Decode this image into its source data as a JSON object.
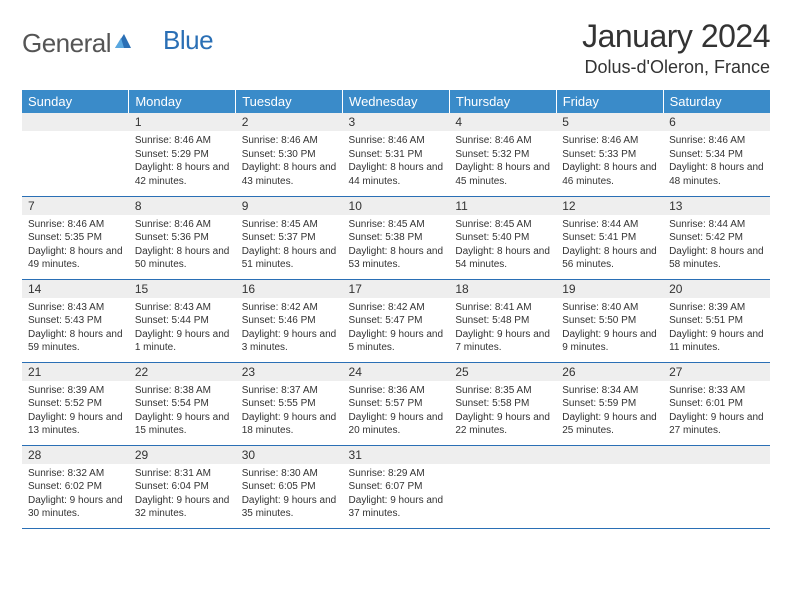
{
  "logo": {
    "text1": "General",
    "text2": "Blue"
  },
  "title": "January 2024",
  "location": "Dolus-d'Oleron, France",
  "colors": {
    "header_bg": "#3a8bc9",
    "header_text": "#ffffff",
    "daynum_bg": "#eeeeee",
    "border": "#2a6fb5",
    "body_text": "#333333"
  },
  "fonts": {
    "title_size": 32,
    "location_size": 18,
    "header_size": 13,
    "daynum_size": 12,
    "body_size": 10
  },
  "weekdays": [
    "Sunday",
    "Monday",
    "Tuesday",
    "Wednesday",
    "Thursday",
    "Friday",
    "Saturday"
  ],
  "weeks": [
    [
      {
        "day": "",
        "sunrise": "",
        "sunset": "",
        "daylight": ""
      },
      {
        "day": "1",
        "sunrise": "Sunrise: 8:46 AM",
        "sunset": "Sunset: 5:29 PM",
        "daylight": "Daylight: 8 hours and 42 minutes."
      },
      {
        "day": "2",
        "sunrise": "Sunrise: 8:46 AM",
        "sunset": "Sunset: 5:30 PM",
        "daylight": "Daylight: 8 hours and 43 minutes."
      },
      {
        "day": "3",
        "sunrise": "Sunrise: 8:46 AM",
        "sunset": "Sunset: 5:31 PM",
        "daylight": "Daylight: 8 hours and 44 minutes."
      },
      {
        "day": "4",
        "sunrise": "Sunrise: 8:46 AM",
        "sunset": "Sunset: 5:32 PM",
        "daylight": "Daylight: 8 hours and 45 minutes."
      },
      {
        "day": "5",
        "sunrise": "Sunrise: 8:46 AM",
        "sunset": "Sunset: 5:33 PM",
        "daylight": "Daylight: 8 hours and 46 minutes."
      },
      {
        "day": "6",
        "sunrise": "Sunrise: 8:46 AM",
        "sunset": "Sunset: 5:34 PM",
        "daylight": "Daylight: 8 hours and 48 minutes."
      }
    ],
    [
      {
        "day": "7",
        "sunrise": "Sunrise: 8:46 AM",
        "sunset": "Sunset: 5:35 PM",
        "daylight": "Daylight: 8 hours and 49 minutes."
      },
      {
        "day": "8",
        "sunrise": "Sunrise: 8:46 AM",
        "sunset": "Sunset: 5:36 PM",
        "daylight": "Daylight: 8 hours and 50 minutes."
      },
      {
        "day": "9",
        "sunrise": "Sunrise: 8:45 AM",
        "sunset": "Sunset: 5:37 PM",
        "daylight": "Daylight: 8 hours and 51 minutes."
      },
      {
        "day": "10",
        "sunrise": "Sunrise: 8:45 AM",
        "sunset": "Sunset: 5:38 PM",
        "daylight": "Daylight: 8 hours and 53 minutes."
      },
      {
        "day": "11",
        "sunrise": "Sunrise: 8:45 AM",
        "sunset": "Sunset: 5:40 PM",
        "daylight": "Daylight: 8 hours and 54 minutes."
      },
      {
        "day": "12",
        "sunrise": "Sunrise: 8:44 AM",
        "sunset": "Sunset: 5:41 PM",
        "daylight": "Daylight: 8 hours and 56 minutes."
      },
      {
        "day": "13",
        "sunrise": "Sunrise: 8:44 AM",
        "sunset": "Sunset: 5:42 PM",
        "daylight": "Daylight: 8 hours and 58 minutes."
      }
    ],
    [
      {
        "day": "14",
        "sunrise": "Sunrise: 8:43 AM",
        "sunset": "Sunset: 5:43 PM",
        "daylight": "Daylight: 8 hours and 59 minutes."
      },
      {
        "day": "15",
        "sunrise": "Sunrise: 8:43 AM",
        "sunset": "Sunset: 5:44 PM",
        "daylight": "Daylight: 9 hours and 1 minute."
      },
      {
        "day": "16",
        "sunrise": "Sunrise: 8:42 AM",
        "sunset": "Sunset: 5:46 PM",
        "daylight": "Daylight: 9 hours and 3 minutes."
      },
      {
        "day": "17",
        "sunrise": "Sunrise: 8:42 AM",
        "sunset": "Sunset: 5:47 PM",
        "daylight": "Daylight: 9 hours and 5 minutes."
      },
      {
        "day": "18",
        "sunrise": "Sunrise: 8:41 AM",
        "sunset": "Sunset: 5:48 PM",
        "daylight": "Daylight: 9 hours and 7 minutes."
      },
      {
        "day": "19",
        "sunrise": "Sunrise: 8:40 AM",
        "sunset": "Sunset: 5:50 PM",
        "daylight": "Daylight: 9 hours and 9 minutes."
      },
      {
        "day": "20",
        "sunrise": "Sunrise: 8:39 AM",
        "sunset": "Sunset: 5:51 PM",
        "daylight": "Daylight: 9 hours and 11 minutes."
      }
    ],
    [
      {
        "day": "21",
        "sunrise": "Sunrise: 8:39 AM",
        "sunset": "Sunset: 5:52 PM",
        "daylight": "Daylight: 9 hours and 13 minutes."
      },
      {
        "day": "22",
        "sunrise": "Sunrise: 8:38 AM",
        "sunset": "Sunset: 5:54 PM",
        "daylight": "Daylight: 9 hours and 15 minutes."
      },
      {
        "day": "23",
        "sunrise": "Sunrise: 8:37 AM",
        "sunset": "Sunset: 5:55 PM",
        "daylight": "Daylight: 9 hours and 18 minutes."
      },
      {
        "day": "24",
        "sunrise": "Sunrise: 8:36 AM",
        "sunset": "Sunset: 5:57 PM",
        "daylight": "Daylight: 9 hours and 20 minutes."
      },
      {
        "day": "25",
        "sunrise": "Sunrise: 8:35 AM",
        "sunset": "Sunset: 5:58 PM",
        "daylight": "Daylight: 9 hours and 22 minutes."
      },
      {
        "day": "26",
        "sunrise": "Sunrise: 8:34 AM",
        "sunset": "Sunset: 5:59 PM",
        "daylight": "Daylight: 9 hours and 25 minutes."
      },
      {
        "day": "27",
        "sunrise": "Sunrise: 8:33 AM",
        "sunset": "Sunset: 6:01 PM",
        "daylight": "Daylight: 9 hours and 27 minutes."
      }
    ],
    [
      {
        "day": "28",
        "sunrise": "Sunrise: 8:32 AM",
        "sunset": "Sunset: 6:02 PM",
        "daylight": "Daylight: 9 hours and 30 minutes."
      },
      {
        "day": "29",
        "sunrise": "Sunrise: 8:31 AM",
        "sunset": "Sunset: 6:04 PM",
        "daylight": "Daylight: 9 hours and 32 minutes."
      },
      {
        "day": "30",
        "sunrise": "Sunrise: 8:30 AM",
        "sunset": "Sunset: 6:05 PM",
        "daylight": "Daylight: 9 hours and 35 minutes."
      },
      {
        "day": "31",
        "sunrise": "Sunrise: 8:29 AM",
        "sunset": "Sunset: 6:07 PM",
        "daylight": "Daylight: 9 hours and 37 minutes."
      },
      {
        "day": "",
        "sunrise": "",
        "sunset": "",
        "daylight": ""
      },
      {
        "day": "",
        "sunrise": "",
        "sunset": "",
        "daylight": ""
      },
      {
        "day": "",
        "sunrise": "",
        "sunset": "",
        "daylight": ""
      }
    ]
  ]
}
